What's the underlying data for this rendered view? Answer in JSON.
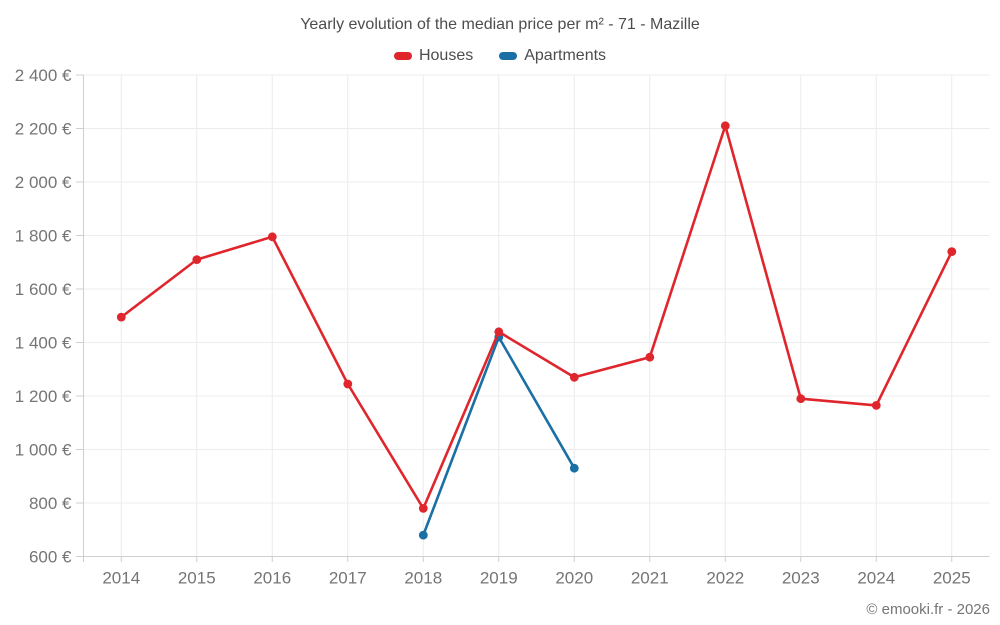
{
  "page": {
    "footer": "© emooki.fr - 2026"
  },
  "chart_data": {
    "type": "line",
    "title": "Yearly evolution of the median price per m² - 71 - Mazille",
    "categories": [
      "2014",
      "2015",
      "2016",
      "2017",
      "2018",
      "2019",
      "2020",
      "2021",
      "2022",
      "2023",
      "2024",
      "2025"
    ],
    "series": [
      {
        "name": "Houses",
        "color": "#e0262d",
        "values": [
          1495,
          1710,
          1795,
          1245,
          780,
          1440,
          1270,
          1345,
          2210,
          1190,
          1165,
          1740
        ]
      },
      {
        "name": "Apartments",
        "color": "#1a6fa5",
        "values": [
          null,
          null,
          null,
          null,
          680,
          1420,
          930,
          null,
          null,
          null,
          null,
          null
        ]
      }
    ],
    "xlabel": "",
    "ylabel": "",
    "ylim": [
      600,
      2400
    ],
    "yticks": [
      600,
      800,
      1000,
      1200,
      1400,
      1600,
      1800,
      2000,
      2200,
      2400
    ],
    "ytick_labels": [
      "600 €",
      "800 €",
      "1 000 €",
      "1 200 €",
      "1 400 €",
      "1 600 €",
      "1 800 €",
      "2 000 €",
      "2 200 €",
      "2 400 €"
    ],
    "grid": true,
    "legend_position": "top"
  },
  "colors": {
    "grid": "#ececec",
    "axis": "#cfcfcf",
    "tick_label": "#757575",
    "background": "#ffffff"
  }
}
